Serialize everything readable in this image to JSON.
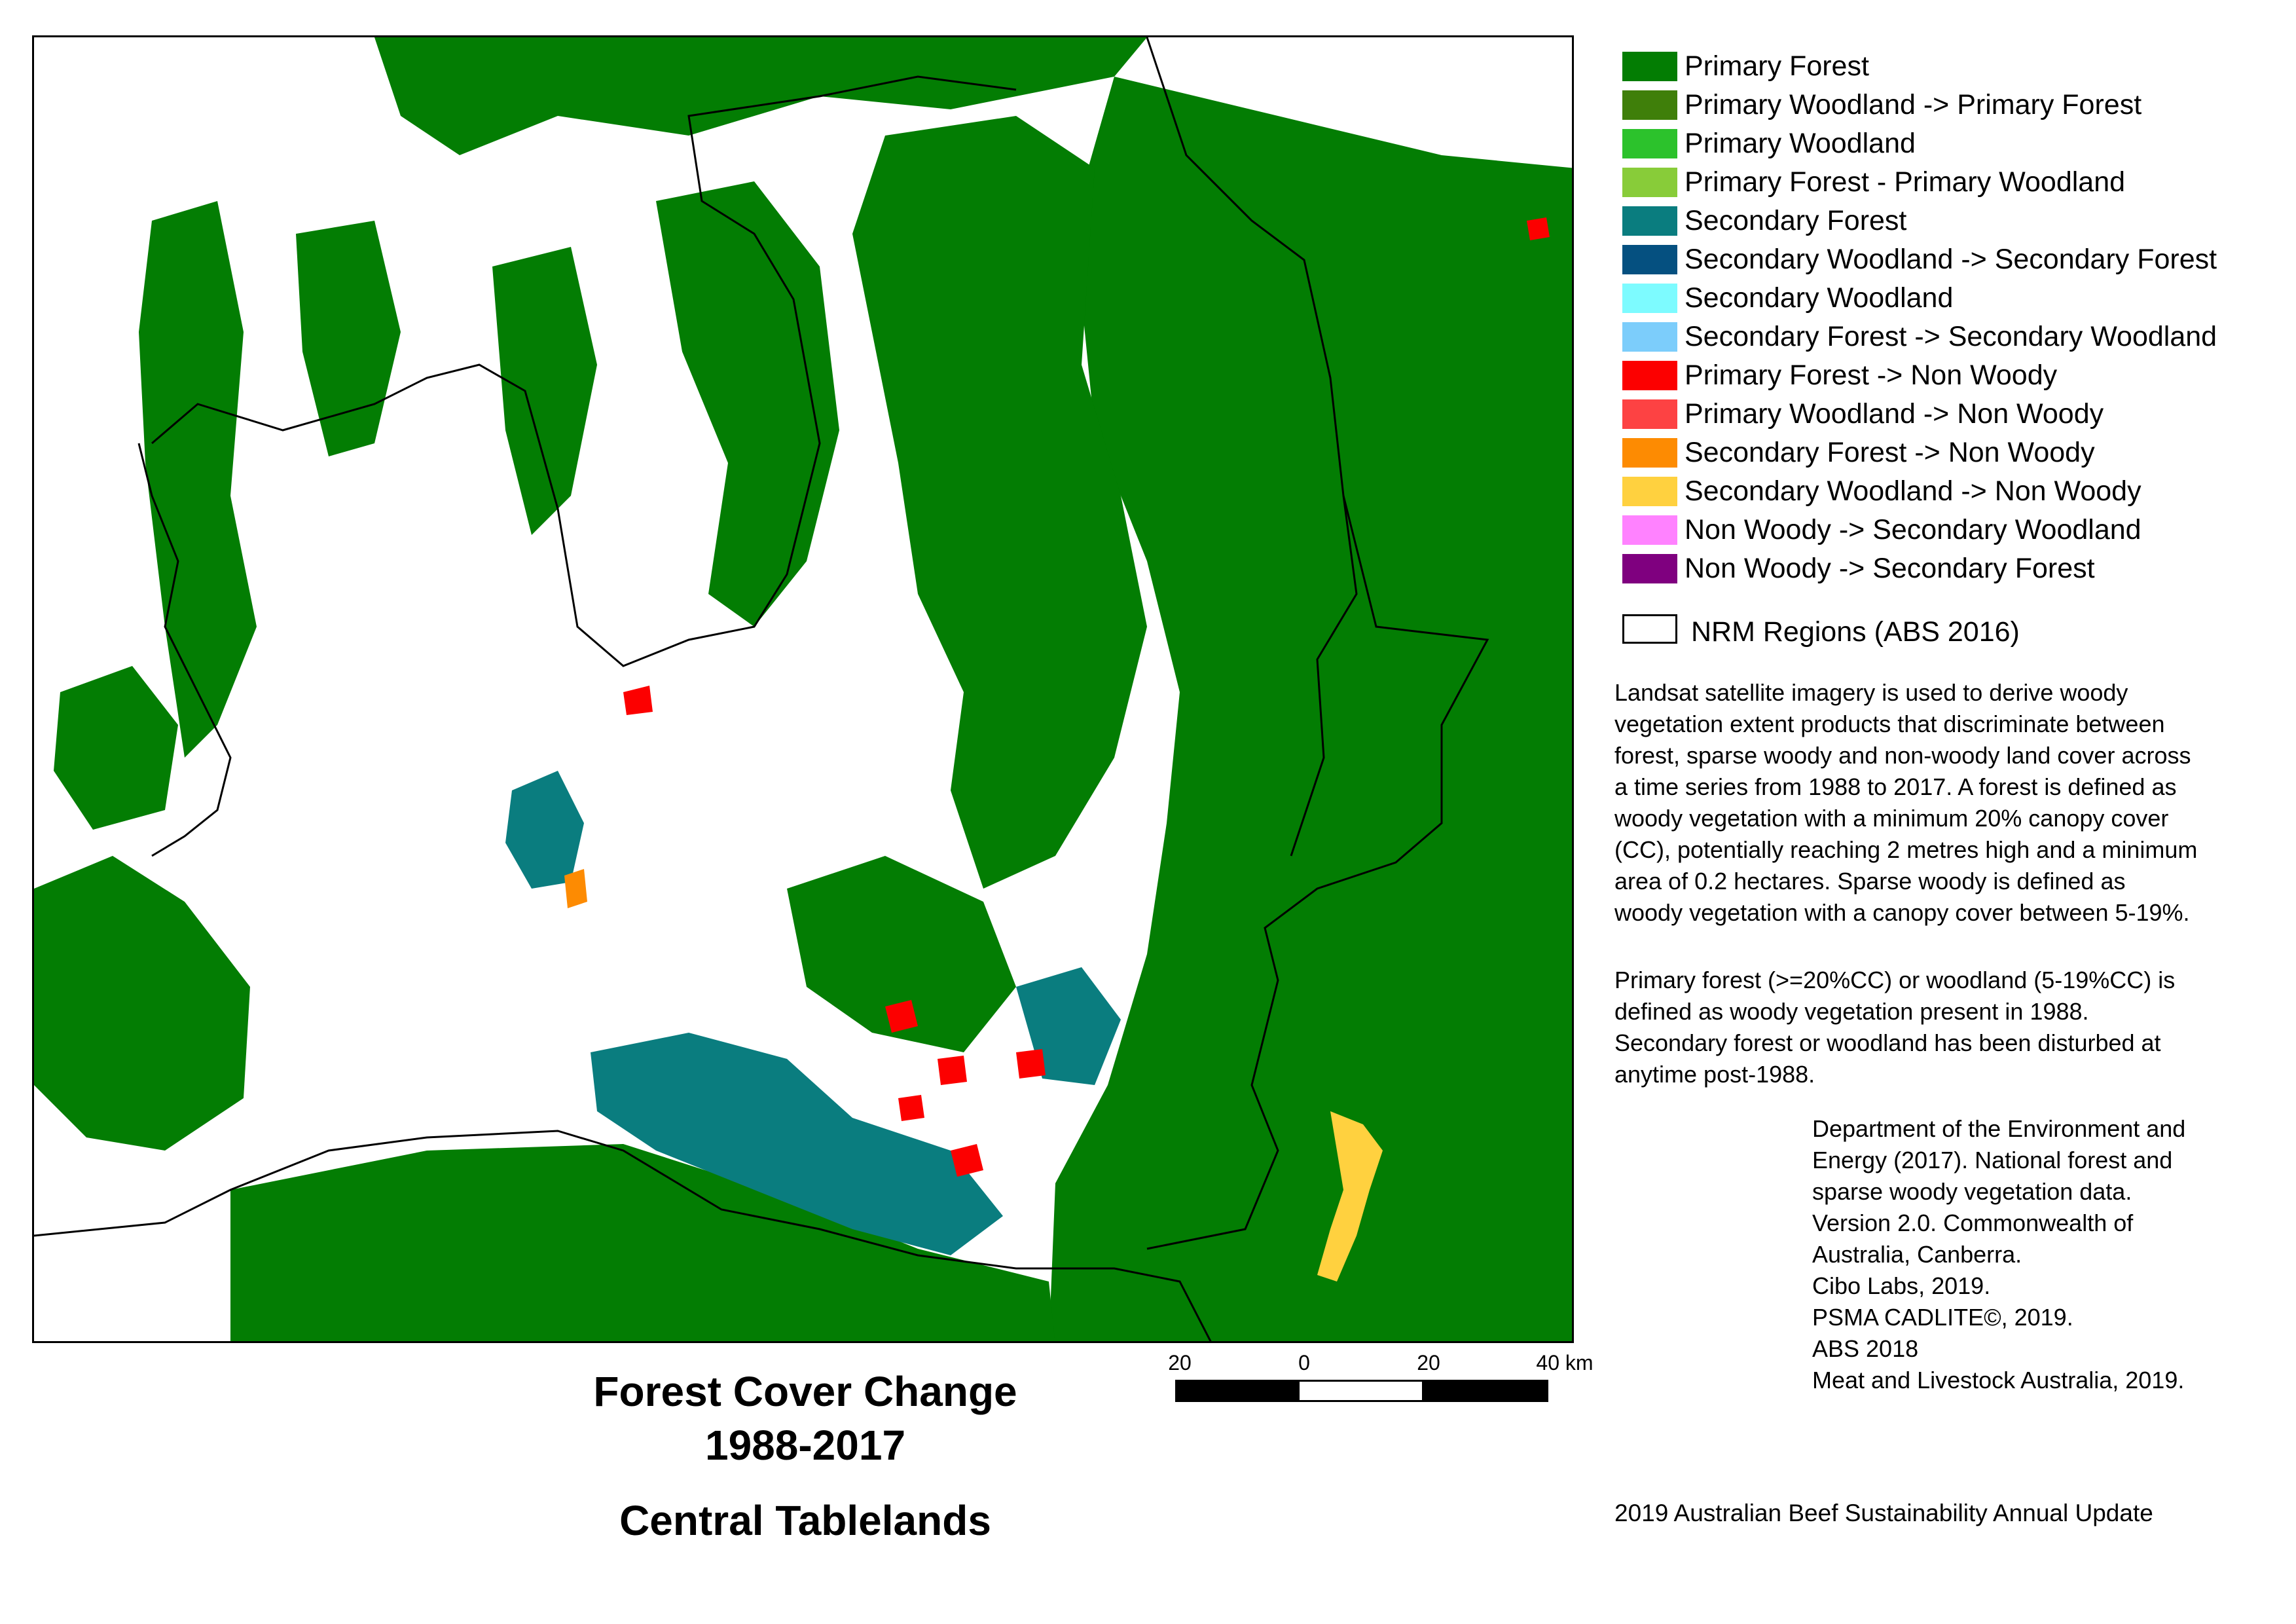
{
  "map": {
    "colors": {
      "primary_forest": "#037d03",
      "primary_woodland_to_forest": "#3f7f0a",
      "primary_woodland": "#2cc22c",
      "primary_forest_to_woodland": "#88cc39",
      "secondary_forest": "#0a7d7f",
      "secondary_woodland_to_forest": "#055080",
      "secondary_woodland": "#7dfbff",
      "secondary_forest_to_woodland": "#7ccdfb",
      "primary_forest_to_nonwoody": "#fc0000",
      "primary_woodland_to_nonwoody": "#fd4243",
      "secondary_forest_to_nonwoody": "#fd8b02",
      "secondary_woodland_to_nonwoody": "#ffd13f",
      "nonwoody_to_secondary_woodland": "#ff82ff",
      "nonwoody_to_secondary_forest": "#7f007f",
      "nrm_boundary": "#000000",
      "background": "#ffffff"
    }
  },
  "legend": {
    "items": [
      {
        "label": "Primary Forest",
        "color": "#037d03"
      },
      {
        "label": "Primary Woodland -> Primary Forest",
        "color": "#3f7f0a"
      },
      {
        "label": "Primary Woodland",
        "color": "#2cc22c"
      },
      {
        "label": "Primary Forest - Primary Woodland",
        "color": "#88cc39"
      },
      {
        "label": "Secondary Forest",
        "color": "#0a7d7f"
      },
      {
        "label": "Secondary Woodland -> Secondary Forest",
        "color": "#055080"
      },
      {
        "label": "Secondary Woodland",
        "color": "#7dfbff"
      },
      {
        "label": "Secondary Forest -> Secondary Woodland",
        "color": "#7ccdfb"
      },
      {
        "label": "Primary Forest -> Non Woody",
        "color": "#fc0000"
      },
      {
        "label": "Primary Woodland -> Non Woody",
        "color": "#fd4243"
      },
      {
        "label": "Secondary Forest -> Non Woody",
        "color": "#fd8b02"
      },
      {
        "label": "Secondary Woodland -> Non Woody",
        "color": "#ffd13f"
      },
      {
        "label": "Non Woody -> Secondary Woodland",
        "color": "#ff82ff"
      },
      {
        "label": "Non Woody -> Secondary Forest",
        "color": "#7f007f"
      }
    ],
    "nrm_label": "NRM Regions (ABS 2016)"
  },
  "description": {
    "paragraph_1": "Landsat satellite imagery is used to derive woody\nvegetation extent products that discriminate between\nforest, sparse woody and non-woody land cover across\na time series from 1988 to 2017. A forest is defined as\nwoody vegetation with a minimum 20% canopy cover\n(CC), potentially reaching 2 metres high and a minimum\narea of 0.2 hectares. Sparse woody is defined as\nwoody vegetation with a canopy cover between 5-19%.",
    "paragraph_2": "Primary forest (>=20%CC) or woodland (5-19%CC) is\ndefined as woody vegetation present in 1988.\nSecondary forest or woodland has been disturbed at\nanytime post-1988."
  },
  "credits": "Department of the Environment and\nEnergy (2017). National forest and\nsparse woody vegetation data.\nVersion 2.0. Commonwealth of\nAustralia, Canberra.\nCibo Labs, 2019.\nPSMA CADLITE©, 2019.\nABS 2018\nMeat and Livestock Australia, 2019.",
  "footer_note": "2019 Australian Beef Sustainability Annual Update",
  "title": {
    "line_1": "Forest Cover Change",
    "line_2": "1988-2017",
    "region": "Central Tablelands"
  },
  "scalebar": {
    "labels": [
      "20",
      "0",
      "20",
      "40 km"
    ]
  }
}
